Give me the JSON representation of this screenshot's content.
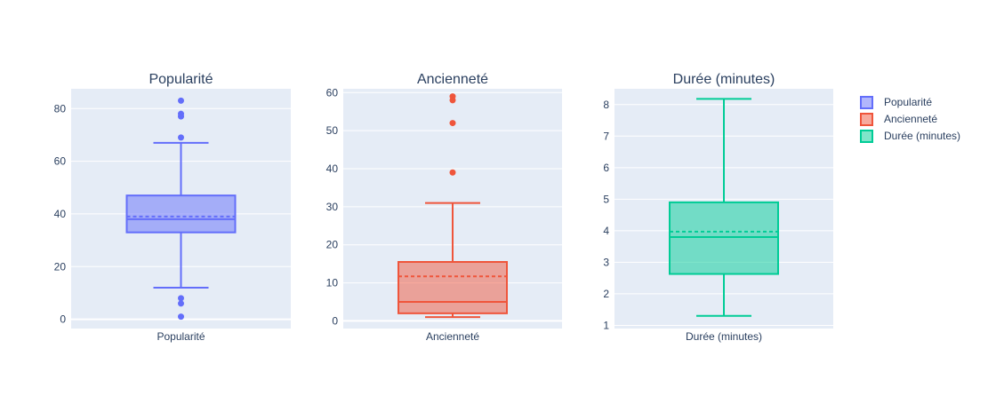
{
  "chart_data": [
    {
      "type": "box",
      "title": "Popularité",
      "category": "Popularité",
      "series_name": "Popularité",
      "color": "#636efa",
      "fill": "rgba(99,110,250,0.5)",
      "ylim": [
        -3.5,
        87.5
      ],
      "yticks": [
        0,
        20,
        40,
        60,
        80
      ],
      "stats": {
        "min": 12,
        "q1": 33,
        "median": 38,
        "mean": 39,
        "q3": 47,
        "max": 67
      },
      "outliers": [
        83,
        78,
        77,
        69,
        8,
        6,
        1
      ]
    },
    {
      "type": "box",
      "title": "Ancienneté",
      "category": "Ancienneté",
      "series_name": "Ancienneté",
      "color": "#ef553b",
      "fill": "rgba(239,85,59,0.5)",
      "ylim": [
        -2,
        61
      ],
      "yticks": [
        0,
        10,
        20,
        30,
        40,
        50,
        60
      ],
      "stats": {
        "min": 1,
        "q1": 2,
        "median": 5,
        "mean": 11.7,
        "q3": 15.5,
        "max": 31
      },
      "outliers": [
        59,
        58,
        52,
        39
      ]
    },
    {
      "type": "box",
      "title": "Durée (minutes)",
      "category": "Durée (minutes)",
      "series_name": "Durée (minutes)",
      "color": "#00cc96",
      "fill": "rgba(0,204,150,0.5)",
      "ylim": [
        0.9,
        8.5
      ],
      "yticks": [
        1,
        2,
        3,
        4,
        5,
        6,
        7,
        8
      ],
      "stats": {
        "min": 1.3,
        "q1": 2.63,
        "median": 3.8,
        "mean": 3.97,
        "q3": 4.9,
        "max": 8.18
      },
      "outliers": []
    }
  ],
  "legend": {
    "position": "top-right",
    "items": [
      {
        "label": "Popularité",
        "color": "#636efa",
        "fill": "rgba(99,110,250,0.5)"
      },
      {
        "label": "Ancienneté",
        "color": "#ef553b",
        "fill": "rgba(239,85,59,0.5)"
      },
      {
        "label": "Durée (minutes)",
        "color": "#00cc96",
        "fill": "rgba(0,204,150,0.5)"
      }
    ]
  },
  "style": {
    "plot_bg": "#e5ecf6",
    "grid": "#ffffff",
    "text": "#2a3f5f"
  }
}
